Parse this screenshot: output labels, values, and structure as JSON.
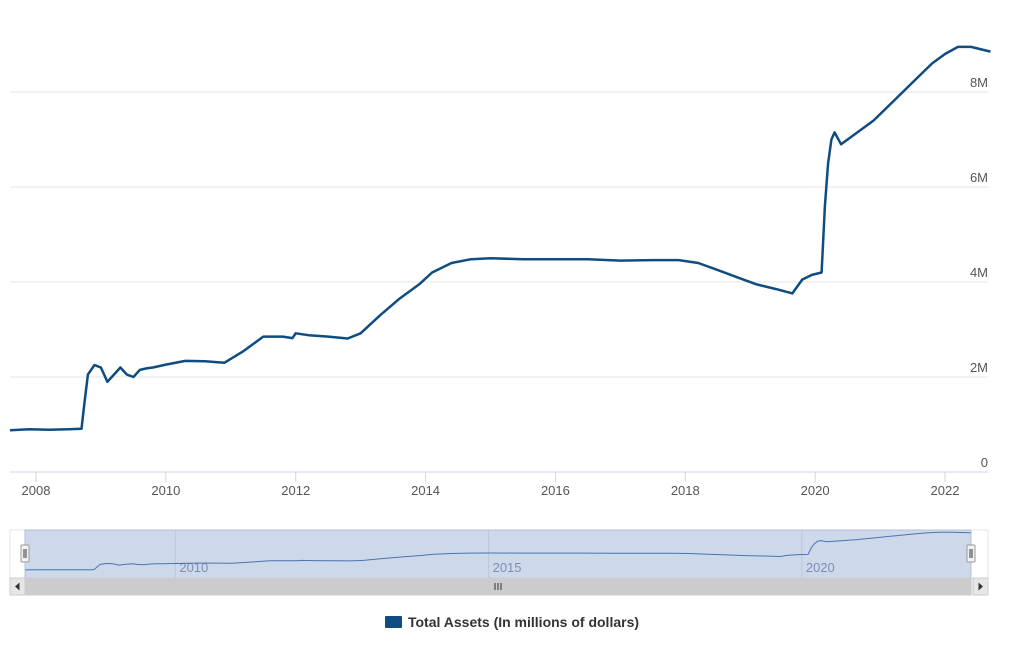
{
  "chart_data": {
    "type": "line",
    "title": "",
    "xlabel": "",
    "ylabel": "",
    "x_ticks": [
      "2008",
      "2010",
      "2012",
      "2014",
      "2016",
      "2018",
      "2020",
      "2022"
    ],
    "y_ticks": [
      "0",
      "2M",
      "4M",
      "6M",
      "8M"
    ],
    "ylim": [
      0,
      9000000
    ],
    "xlim": [
      2007.6,
      2022.7
    ],
    "grid": true,
    "legend_position": "bottom-center",
    "series": [
      {
        "name": "Total Assets (In millions of dollars)",
        "color": "#0f4c81",
        "x": [
          2007.6,
          2007.9,
          2008.2,
          2008.5,
          2008.7,
          2008.75,
          2008.8,
          2008.9,
          2009.0,
          2009.1,
          2009.2,
          2009.3,
          2009.4,
          2009.5,
          2009.6,
          2009.7,
          2009.8,
          2010.0,
          2010.3,
          2010.6,
          2010.9,
          2011.2,
          2011.5,
          2011.8,
          2011.95,
          2012.0,
          2012.2,
          2012.5,
          2012.8,
          2013.0,
          2013.3,
          2013.6,
          2013.9,
          2014.1,
          2014.4,
          2014.7,
          2015.0,
          2015.5,
          2016.0,
          2016.5,
          2017.0,
          2017.5,
          2017.9,
          2018.2,
          2018.5,
          2018.8,
          2019.1,
          2019.4,
          2019.65,
          2019.8,
          2019.95,
          2020.1,
          2020.15,
          2020.2,
          2020.25,
          2020.3,
          2020.4,
          2020.6,
          2020.9,
          2021.2,
          2021.5,
          2021.8,
          2022.0,
          2022.2,
          2022.4,
          2022.7
        ],
        "values": [
          880000,
          900000,
          890000,
          900000,
          910000,
          1500000,
          2050000,
          2250000,
          2200000,
          1900000,
          2050000,
          2200000,
          2050000,
          2000000,
          2150000,
          2180000,
          2200000,
          2260000,
          2340000,
          2330000,
          2300000,
          2550000,
          2850000,
          2850000,
          2820000,
          2920000,
          2880000,
          2850000,
          2810000,
          2920000,
          3300000,
          3650000,
          3950000,
          4200000,
          4400000,
          4480000,
          4500000,
          4480000,
          4480000,
          4480000,
          4450000,
          4460000,
          4460000,
          4400000,
          4250000,
          4100000,
          3950000,
          3850000,
          3760000,
          4050000,
          4150000,
          4200000,
          5600000,
          6500000,
          7000000,
          7150000,
          6900000,
          7100000,
          7400000,
          7800000,
          8200000,
          8600000,
          8800000,
          8950000,
          8950000,
          8850000
        ]
      }
    ]
  },
  "navigator": {
    "x_ticks": [
      "2010",
      "2015",
      "2020"
    ]
  }
}
